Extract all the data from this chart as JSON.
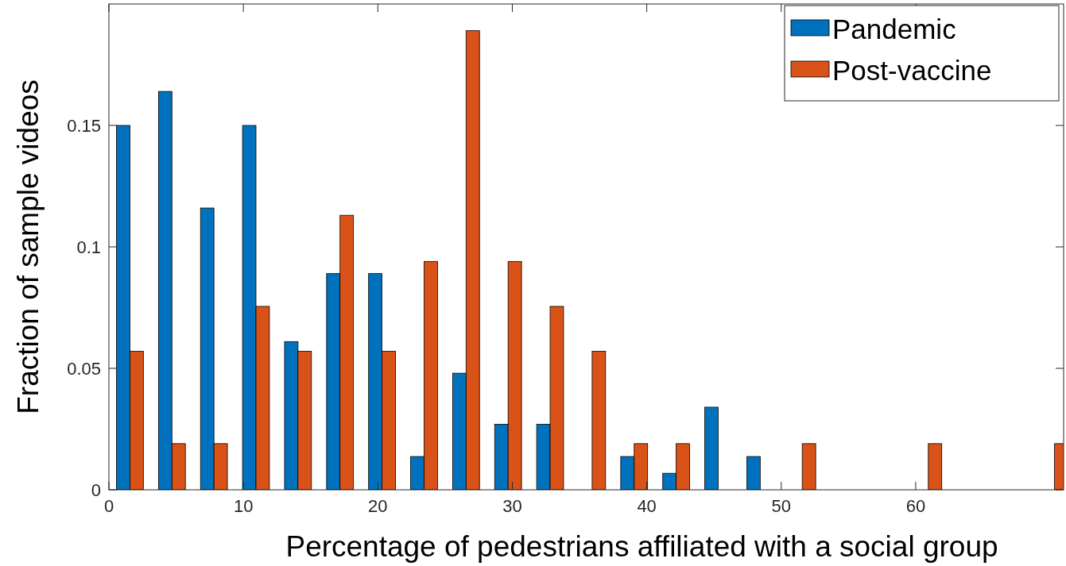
{
  "chart_data": {
    "type": "bar",
    "xlabel": "Percentage of pedestrians affiliated with a social group",
    "ylabel": "Fraction of sample videos",
    "x": [
      1.5625,
      4.6875,
      7.8125,
      10.9375,
      14.0625,
      17.1875,
      20.3125,
      23.4375,
      26.5625,
      29.6875,
      32.8125,
      35.9375,
      39.0625,
      42.1875,
      45.3125,
      48.4375,
      51.5625,
      54.6875,
      57.8125,
      60.9375,
      64.0625,
      67.1875,
      70.3125
    ],
    "series": [
      {
        "name": "Pandemic",
        "color": "#0072bd",
        "values": [
          0.15,
          0.164,
          0.116,
          0.15,
          0.061,
          0.089,
          0.089,
          0.0137,
          0.048,
          0.027,
          0.027,
          0,
          0.0137,
          0.0068,
          0.034,
          0.0137,
          0,
          0,
          0,
          0,
          0,
          0,
          0
        ]
      },
      {
        "name": "Post-vaccine",
        "color": "#d95319",
        "values": [
          0.057,
          0.019,
          0.019,
          0.0755,
          0.057,
          0.113,
          0.057,
          0.094,
          0.189,
          0.094,
          0.0755,
          0.057,
          0.019,
          0.019,
          0,
          0,
          0.019,
          0,
          0,
          0.019,
          0,
          0,
          0.019
        ]
      }
    ],
    "xlim": [
      0,
      71
    ],
    "xticks": [
      0,
      10,
      20,
      30,
      40,
      50,
      60
    ],
    "ylim": [
      0,
      0.2
    ],
    "yticks": [
      0,
      0.05,
      0.1,
      0.15
    ],
    "grid": false,
    "legend": "top right"
  }
}
